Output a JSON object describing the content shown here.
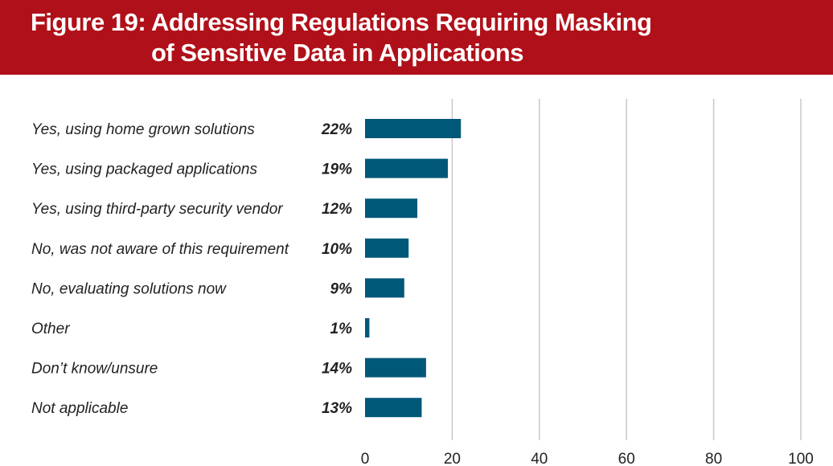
{
  "header": {
    "figure_label": "Figure 19:",
    "title_line1": "Addressing Regulations Requiring Masking",
    "title_line2": "of Sensitive Data in Applications"
  },
  "colors": {
    "banner": "#b01019",
    "bar": "#005878",
    "grid": "#c8c8c8",
    "text": "#222222"
  },
  "chart_data": {
    "type": "bar",
    "orientation": "horizontal",
    "title": "Figure 19: Addressing Regulations Requiring Masking of Sensitive Data in Applications",
    "categories": [
      "Yes, using home grown solutions",
      "Yes, using packaged applications",
      "Yes, using third-party security vendor",
      "No, was not aware of this requirement",
      "No, evaluating solutions now",
      "Other",
      "Don’t know/unsure",
      "Not applicable"
    ],
    "values": [
      22,
      19,
      12,
      10,
      9,
      1,
      14,
      13
    ],
    "value_labels": [
      "22%",
      "19%",
      "12%",
      "10%",
      "9%",
      "1%",
      "14%",
      "13%"
    ],
    "xlim": [
      0,
      100
    ],
    "xticks": [
      0,
      20,
      40,
      60,
      80,
      100
    ],
    "xtick_labels": [
      "0",
      "20",
      "40",
      "60",
      "80",
      "100"
    ],
    "grid": true,
    "legend": "none"
  }
}
